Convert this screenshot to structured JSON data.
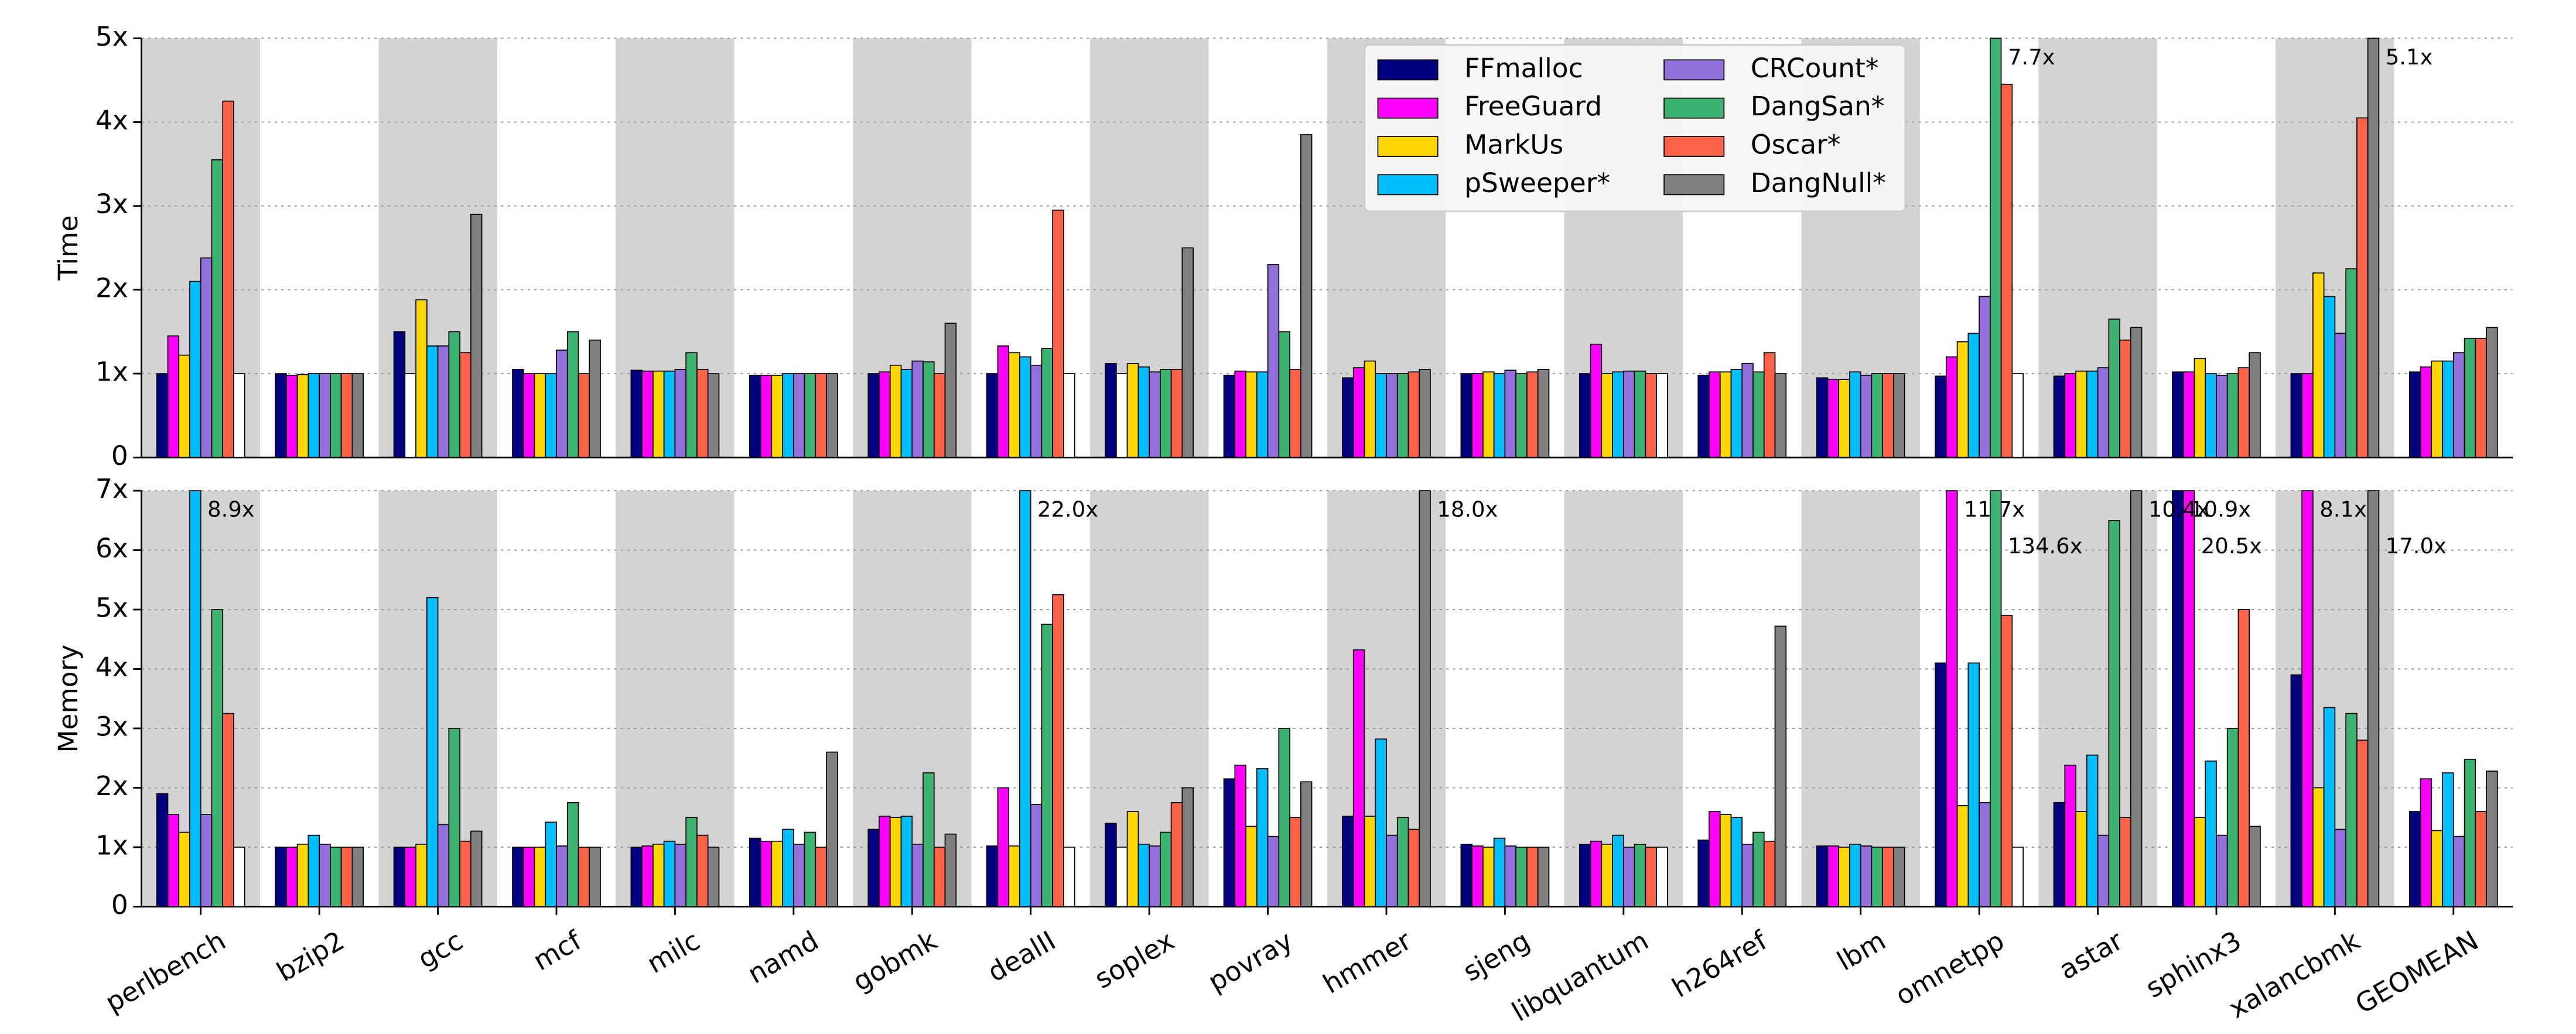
{
  "chart_data": [
    {
      "type": "bar",
      "ylabel": "Time",
      "grid": true,
      "legend": "upper center",
      "ylim": [
        0,
        5
      ],
      "yticks": [
        0,
        {
          "value": 1,
          "label": "1x"
        },
        {
          "value": 2,
          "label": "2x"
        },
        {
          "value": 3,
          "label": "3x"
        },
        {
          "value": 4,
          "label": "4x"
        },
        {
          "value": 5,
          "label": "5x"
        }
      ],
      "series": [
        {
          "name": "FFmalloc",
          "color": "#000080",
          "values": [
            1.0,
            1.0,
            1.5,
            1.05,
            1.04,
            0.98,
            1.0,
            1.0,
            1.12,
            0.98,
            0.95,
            1.0,
            1.0,
            0.98,
            0.95,
            0.97,
            0.97,
            1.02,
            1.0,
            1.02
          ]
        },
        {
          "name": "FreeGuard",
          "color": "#ff00ff",
          "values": [
            1.45,
            0.98,
            1.0,
            1.0,
            1.03,
            0.98,
            1.02,
            1.33,
            1.0,
            1.03,
            1.07,
            1.0,
            1.35,
            1.02,
            0.93,
            1.2,
            1.0,
            1.02,
            1.0,
            1.08
          ],
          "value_colors": [
            null,
            null,
            "#ffffff",
            null,
            null,
            null,
            null,
            null,
            "#ffffff",
            null,
            null,
            null,
            null,
            null,
            null,
            null,
            null,
            null,
            null,
            null
          ]
        },
        {
          "name": "MarkUs",
          "color": "#ffd700",
          "values": [
            1.22,
            0.99,
            1.88,
            1.0,
            1.03,
            0.98,
            1.1,
            1.25,
            1.12,
            1.02,
            1.15,
            1.02,
            1.0,
            1.02,
            0.93,
            1.38,
            1.03,
            1.18,
            2.2,
            1.15
          ]
        },
        {
          "name": "pSweeper*",
          "color": "#00bfff",
          "values": [
            2.1,
            1.0,
            1.33,
            1.0,
            1.03,
            1.0,
            1.05,
            1.2,
            1.08,
            1.02,
            1.0,
            1.0,
            1.02,
            1.05,
            1.02,
            1.48,
            1.03,
            1.0,
            1.92,
            1.15
          ]
        },
        {
          "name": "CRCount*",
          "color": "#9370db",
          "values": [
            2.38,
            1.0,
            1.33,
            1.28,
            1.05,
            1.0,
            1.15,
            1.1,
            1.02,
            2.3,
            1.0,
            1.04,
            1.03,
            1.12,
            0.98,
            1.92,
            1.07,
            0.98,
            1.48,
            1.25
          ]
        },
        {
          "name": "DangSan*",
          "color": "#3cb371",
          "values": [
            3.55,
            1.0,
            1.5,
            1.5,
            1.25,
            1.0,
            1.14,
            1.3,
            1.05,
            1.5,
            1.0,
            1.0,
            1.03,
            1.02,
            1.0,
            7.7,
            1.65,
            1.0,
            2.25,
            1.42
          ],
          "value_labels": [
            null,
            null,
            null,
            null,
            null,
            null,
            null,
            null,
            null,
            null,
            null,
            null,
            null,
            null,
            null,
            "7.7x",
            null,
            null,
            null,
            null
          ]
        },
        {
          "name": "Oscar*",
          "color": "#ff6347",
          "values": [
            4.25,
            1.0,
            1.25,
            1.0,
            1.05,
            1.0,
            1.0,
            2.95,
            1.05,
            1.05,
            1.02,
            1.02,
            1.0,
            1.25,
            1.0,
            4.45,
            1.4,
            1.07,
            4.05,
            1.42
          ]
        },
        {
          "name": "DangNull*",
          "color": "#808080",
          "values": [
            1.0,
            1.0,
            2.9,
            1.4,
            1.0,
            1.0,
            1.6,
            1.0,
            2.5,
            3.85,
            1.05,
            1.05,
            1.0,
            1.0,
            1.0,
            1.0,
            1.55,
            1.25,
            5.1,
            1.55
          ],
          "value_labels": [
            null,
            null,
            null,
            null,
            null,
            null,
            null,
            null,
            null,
            null,
            null,
            null,
            null,
            null,
            null,
            null,
            null,
            null,
            "5.1x",
            null
          ],
          "value_colors": [
            "#ffffff",
            null,
            null,
            null,
            null,
            null,
            null,
            "#ffffff",
            null,
            null,
            null,
            null,
            "#ffffff",
            null,
            null,
            "#ffffff",
            null,
            null,
            null,
            null
          ]
        }
      ]
    },
    {
      "type": "bar",
      "ylabel": "Memory",
      "grid": true,
      "categories": [
        "perlbench",
        "bzip2",
        "gcc",
        "mcf",
        "milc",
        "namd",
        "gobmk",
        "dealII",
        "soplex",
        "povray",
        "hmmer",
        "sjeng",
        "libquantum",
        "h264ref",
        "lbm",
        "omnetpp",
        "astar",
        "sphinx3",
        "xalancbmk",
        "GEOMEAN"
      ],
      "ylim": [
        0,
        7
      ],
      "yticks": [
        0,
        {
          "value": 1,
          "label": "1x"
        },
        {
          "value": 2,
          "label": "2x"
        },
        {
          "value": 3,
          "label": "3x"
        },
        {
          "value": 4,
          "label": "4x"
        },
        {
          "value": 5,
          "label": "5x"
        },
        {
          "value": 6,
          "label": "6x"
        },
        {
          "value": 7,
          "label": "7x"
        }
      ],
      "series": [
        {
          "color": "#000080",
          "values": [
            1.9,
            1.0,
            1.0,
            1.0,
            1.0,
            1.15,
            1.3,
            1.02,
            1.4,
            2.15,
            1.52,
            1.05,
            1.05,
            1.12,
            1.02,
            4.1,
            1.75,
            10.9,
            3.9,
            1.6
          ],
          "value_labels": [
            null,
            null,
            null,
            null,
            null,
            null,
            null,
            null,
            null,
            null,
            null,
            null,
            null,
            null,
            null,
            null,
            null,
            "10.9x",
            null,
            null
          ]
        },
        {
          "color": "#ff00ff",
          "values": [
            1.55,
            1.0,
            1.0,
            1.0,
            1.02,
            1.1,
            1.52,
            2.0,
            1.0,
            2.38,
            4.32,
            1.02,
            1.1,
            1.6,
            1.02,
            11.7,
            2.38,
            20.5,
            8.1,
            2.15
          ],
          "value_labels": [
            null,
            null,
            null,
            null,
            null,
            null,
            null,
            null,
            null,
            null,
            null,
            null,
            null,
            null,
            null,
            "11.7x",
            null,
            "20.5x",
            "8.1x",
            null
          ],
          "value_colors": [
            null,
            null,
            null,
            null,
            null,
            null,
            null,
            null,
            "#ffffff",
            null,
            null,
            null,
            null,
            null,
            null,
            null,
            null,
            null,
            null,
            null
          ]
        },
        {
          "color": "#ffd700",
          "values": [
            1.25,
            1.05,
            1.05,
            1.0,
            1.05,
            1.1,
            1.5,
            1.02,
            1.6,
            1.35,
            1.52,
            1.0,
            1.05,
            1.55,
            1.0,
            1.7,
            1.6,
            1.5,
            2.0,
            1.28
          ]
        },
        {
          "color": "#00bfff",
          "values": [
            8.9,
            1.2,
            5.2,
            1.42,
            1.1,
            1.3,
            1.52,
            22.0,
            1.05,
            2.32,
            2.82,
            1.15,
            1.2,
            1.5,
            1.05,
            4.1,
            2.55,
            2.45,
            3.35,
            2.25
          ],
          "value_labels": [
            "8.9x",
            null,
            null,
            null,
            null,
            null,
            null,
            "22.0x",
            null,
            null,
            null,
            null,
            null,
            null,
            null,
            null,
            null,
            null,
            null,
            null
          ]
        },
        {
          "color": "#9370db",
          "values": [
            1.55,
            1.05,
            1.38,
            1.02,
            1.05,
            1.05,
            1.05,
            1.72,
            1.02,
            1.18,
            1.2,
            1.02,
            1.0,
            1.05,
            1.02,
            1.75,
            1.2,
            1.2,
            1.3,
            1.18
          ]
        },
        {
          "color": "#3cb371",
          "values": [
            5.0,
            1.0,
            3.0,
            1.75,
            1.5,
            1.25,
            2.25,
            4.75,
            1.25,
            3.0,
            1.5,
            1.0,
            1.05,
            1.25,
            1.0,
            134.6,
            6.5,
            3.0,
            3.25,
            2.48
          ],
          "value_labels": [
            null,
            null,
            null,
            null,
            null,
            null,
            null,
            null,
            null,
            null,
            null,
            null,
            null,
            null,
            null,
            "134.6x",
            null,
            null,
            null,
            null
          ]
        },
        {
          "color": "#ff6347",
          "values": [
            3.25,
            1.0,
            1.1,
            1.0,
            1.2,
            1.0,
            1.0,
            5.25,
            1.75,
            1.5,
            1.3,
            1.0,
            1.0,
            1.1,
            1.0,
            4.9,
            1.5,
            5.0,
            2.8,
            1.6
          ]
        },
        {
          "color": "#808080",
          "values": [
            1.0,
            1.0,
            1.27,
            1.0,
            1.0,
            2.6,
            1.22,
            1.0,
            2.0,
            2.1,
            18.0,
            1.0,
            1.0,
            4.72,
            1.0,
            1.0,
            10.4,
            1.35,
            17.0,
            2.28
          ],
          "value_labels": [
            null,
            null,
            null,
            null,
            null,
            null,
            null,
            null,
            null,
            null,
            "18.0x",
            null,
            null,
            null,
            null,
            null,
            "10.4x",
            null,
            "17.0x",
            null
          ],
          "value_colors": [
            "#ffffff",
            null,
            null,
            null,
            null,
            null,
            null,
            "#ffffff",
            null,
            null,
            null,
            null,
            "#ffffff",
            null,
            null,
            "#ffffff",
            null,
            null,
            null,
            null
          ]
        }
      ]
    }
  ]
}
